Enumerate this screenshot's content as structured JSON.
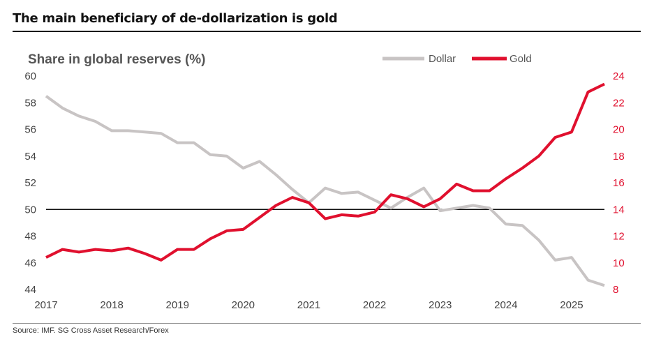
{
  "title": "The main beneficiary of de-dollarization is gold",
  "source": "Source: IMF. SG Cross Asset Research/Forex",
  "colors": {
    "dollar": "#c8c4c4",
    "gold": "#e0102e",
    "baseline": "#111111"
  },
  "chart_data": {
    "type": "line",
    "ylabel": "Share in global reserves (%)",
    "xlabel": "",
    "xlim": [
      2017,
      2025.5
    ],
    "x_ticks": [
      2017,
      2018,
      2019,
      2020,
      2021,
      2022,
      2023,
      2024,
      2025
    ],
    "x_tick_labels": [
      "2017",
      "2018",
      "2019",
      "2020",
      "2021",
      "2022",
      "2023",
      "2024",
      "2025"
    ],
    "ylim_left": [
      44,
      60
    ],
    "y_ticks_left": [
      "44",
      "46",
      "48",
      "50",
      "52",
      "54",
      "56",
      "58",
      "60"
    ],
    "ylim_right": [
      8,
      24
    ],
    "y_ticks_right": [
      "8",
      "10",
      "12",
      "14",
      "16",
      "18",
      "20",
      "22",
      "24"
    ],
    "reference_line_left": 50,
    "legend_position": "top-right",
    "grid": false,
    "series": [
      {
        "name": "Dollar",
        "axis": "left",
        "x": [
          2017.0,
          2017.25,
          2017.5,
          2017.75,
          2018.0,
          2018.25,
          2018.5,
          2018.75,
          2019.0,
          2019.25,
          2019.5,
          2019.75,
          2020.0,
          2020.25,
          2020.5,
          2020.75,
          2021.0,
          2021.25,
          2021.5,
          2021.75,
          2022.0,
          2022.25,
          2022.5,
          2022.75,
          2023.0,
          2023.25,
          2023.5,
          2023.75,
          2024.0,
          2024.25,
          2024.5,
          2024.75,
          2025.0,
          2025.25,
          2025.5
        ],
        "values": [
          58.5,
          57.6,
          57.0,
          56.6,
          55.9,
          55.9,
          55.8,
          55.7,
          55.0,
          55.0,
          54.1,
          54.0,
          53.1,
          53.6,
          52.6,
          51.5,
          50.5,
          51.6,
          51.2,
          51.3,
          50.7,
          50.1,
          50.9,
          51.6,
          49.9,
          50.1,
          50.3,
          50.1,
          48.9,
          48.8,
          47.7,
          46.2,
          46.4,
          44.7,
          44.3
        ]
      },
      {
        "name": "Gold",
        "axis": "right",
        "x": [
          2017.0,
          2017.25,
          2017.5,
          2017.75,
          2018.0,
          2018.25,
          2018.5,
          2018.75,
          2019.0,
          2019.25,
          2019.5,
          2019.75,
          2020.0,
          2020.25,
          2020.5,
          2020.75,
          2021.0,
          2021.25,
          2021.5,
          2021.75,
          2022.0,
          2022.25,
          2022.5,
          2022.75,
          2023.0,
          2023.25,
          2023.5,
          2023.75,
          2024.0,
          2024.25,
          2024.5,
          2024.75,
          2025.0,
          2025.25,
          2025.5
        ],
        "values": [
          10.4,
          11.0,
          10.8,
          11.0,
          10.9,
          11.1,
          10.7,
          10.2,
          11.0,
          11.0,
          11.8,
          12.4,
          12.5,
          13.4,
          14.3,
          14.9,
          14.5,
          13.3,
          13.6,
          13.5,
          13.8,
          15.1,
          14.8,
          14.2,
          14.8,
          15.9,
          15.4,
          15.4,
          16.3,
          17.1,
          18.0,
          19.4,
          19.8,
          22.8,
          23.4
        ]
      }
    ]
  }
}
